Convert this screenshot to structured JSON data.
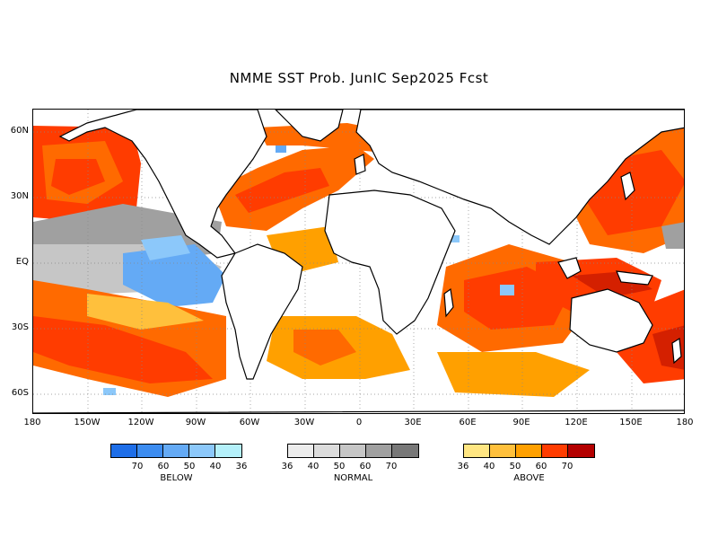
{
  "title": "NMME SST Prob. JunIC   Sep2025 Fcst",
  "lat_labels": [
    "60N",
    "30N",
    "EQ",
    "30S",
    "60S"
  ],
  "lon_labels": [
    "180",
    "150W",
    "120W",
    "90W",
    "60W",
    "30W",
    "0",
    "30E",
    "60E",
    "90E",
    "120E",
    "150E",
    "180"
  ],
  "legends": [
    {
      "name": "BELOW",
      "colors": [
        "#1e6ee8",
        "#3c8cf0",
        "#64aaf5",
        "#8cc8fa",
        "#b4f0fa"
      ],
      "ticks": [
        "70",
        "60",
        "50",
        "40",
        "36"
      ]
    },
    {
      "name": "NORMAL",
      "colors": [
        "#ececec",
        "#dcdcdc",
        "#c6c6c6",
        "#a0a0a0",
        "#787878"
      ],
      "ticks": [
        "36",
        "40",
        "50",
        "60",
        "70"
      ]
    },
    {
      "name": "ABOVE",
      "colors": [
        "#ffe682",
        "#ffc03c",
        "#ffa000",
        "#ff3c00",
        "#b40000"
      ],
      "ticks": [
        "36",
        "40",
        "50",
        "60",
        "70"
      ]
    }
  ]
}
